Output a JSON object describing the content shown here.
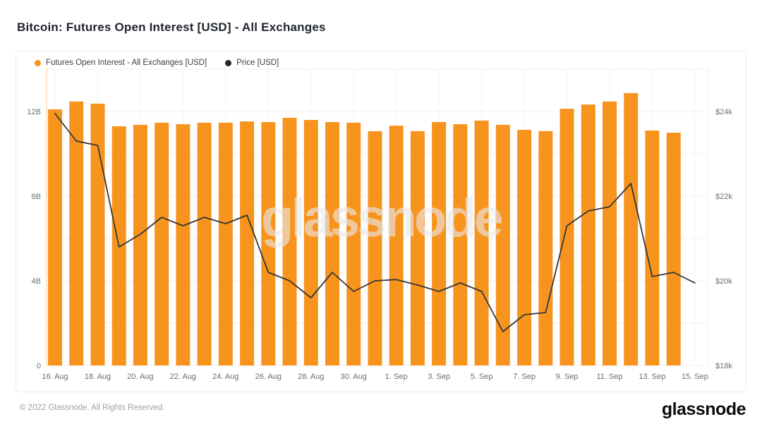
{
  "header": {
    "title": "Bitcoin: Futures Open Interest [USD] - All Exchanges"
  },
  "legend": {
    "items": [
      {
        "label": "Futures Open Interest - All Exchanges [USD]",
        "color": "#F7941E"
      },
      {
        "label": "Price [USD]",
        "color": "#262626"
      }
    ]
  },
  "watermark": {
    "text": "glassnode"
  },
  "footer": {
    "copyright": "© 2022 Glassnode. All Rights Reserved.",
    "logo": "glassnode"
  },
  "chart_data": {
    "type": "bar+line",
    "title": "Bitcoin: Futures Open Interest [USD] - All Exchanges",
    "x": [
      "16. Aug",
      "17. Aug",
      "18. Aug",
      "19. Aug",
      "20. Aug",
      "21. Aug",
      "22. Aug",
      "23. Aug",
      "24. Aug",
      "25. Aug",
      "26. Aug",
      "27. Aug",
      "28. Aug",
      "29. Aug",
      "30. Aug",
      "31. Aug",
      "1. Sep",
      "2. Sep",
      "3. Sep",
      "4. Sep",
      "5. Sep",
      "6. Sep",
      "7. Sep",
      "8. Sep",
      "9. Sep",
      "10. Sep",
      "11. Sep",
      "12. Sep",
      "13. Sep",
      "14. Sep",
      "15. Sep"
    ],
    "series": [
      {
        "name": "Futures Open Interest - All Exchanges [USD]",
        "type": "bar",
        "axis": "left",
        "unit": "billion USD",
        "color": "#F7941E",
        "values": [
          12.1,
          12.47,
          12.37,
          11.3,
          11.37,
          11.47,
          11.4,
          11.47,
          11.47,
          11.53,
          11.5,
          11.7,
          11.6,
          11.5,
          11.47,
          11.07,
          11.33,
          11.07,
          11.5,
          11.4,
          11.57,
          11.37,
          11.13,
          11.07,
          12.13,
          12.33,
          12.47,
          12.87,
          11.1,
          11.0,
          null
        ]
      },
      {
        "name": "Price [USD]",
        "type": "line",
        "axis": "right",
        "unit": "thousand USD",
        "color": "#363636",
        "values": [
          23.95,
          23.3,
          23.2,
          20.8,
          21.1,
          21.5,
          21.3,
          21.5,
          21.35,
          21.55,
          20.2,
          20.0,
          19.6,
          20.2,
          19.75,
          20.0,
          20.03,
          19.9,
          19.75,
          19.95,
          19.75,
          18.8,
          19.2,
          19.25,
          21.3,
          21.65,
          21.75,
          22.3,
          20.1,
          20.2,
          19.95
        ]
      }
    ],
    "left_axis": {
      "ticks": [
        {
          "label": "0",
          "value": 0
        },
        {
          "label": "4B",
          "value": 4
        },
        {
          "label": "8B",
          "value": 8
        },
        {
          "label": "12B",
          "value": 12
        }
      ],
      "range": [
        0,
        14
      ]
    },
    "right_axis": {
      "ticks": [
        {
          "label": "$18k",
          "value": 18
        },
        {
          "label": "$20k",
          "value": 20
        },
        {
          "label": "$22k",
          "value": 22
        },
        {
          "label": "$24k",
          "value": 24
        }
      ],
      "range": [
        18,
        25
      ]
    },
    "x_tick_every": 2,
    "grid": true,
    "legend_position": "top-left"
  }
}
